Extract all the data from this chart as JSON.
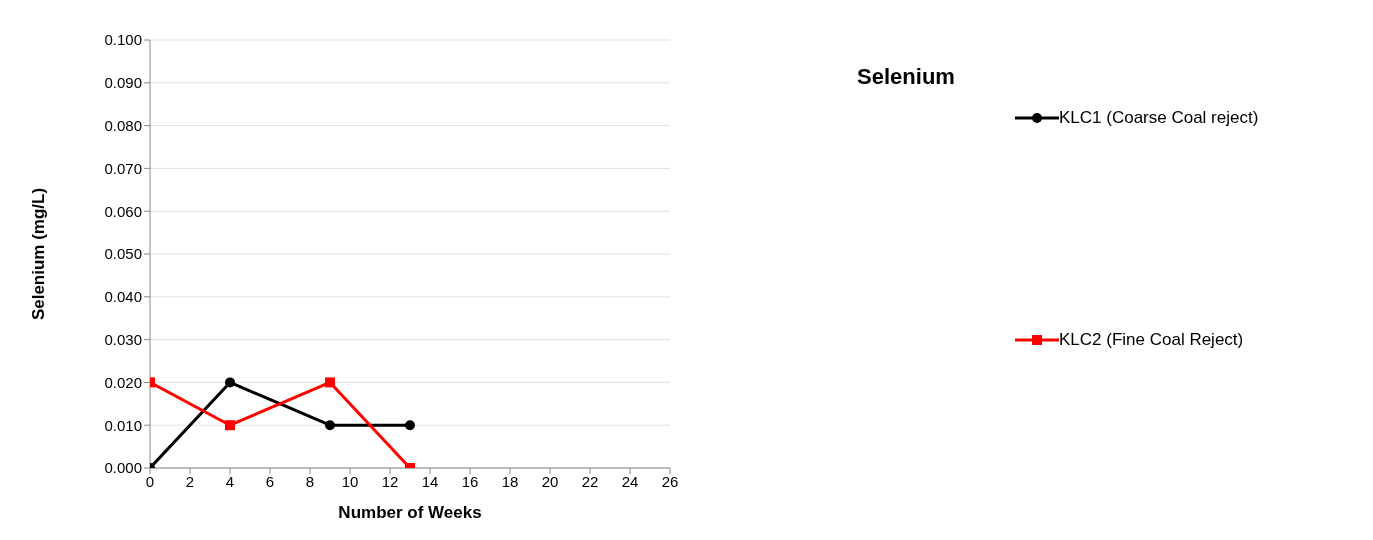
{
  "chart_data": {
    "type": "line",
    "title": "Selenium",
    "xlabel": "Number of Weeks",
    "ylabel": "Selenium  (mg/L)",
    "x": [
      0,
      4,
      9,
      13
    ],
    "series": [
      {
        "name": "KLC1 (Coarse Coal reject)",
        "color": "#000000",
        "marker": "circle",
        "values": [
          0,
          0.02,
          0.01,
          0.01
        ]
      },
      {
        "name": "KLC2 (Fine Coal Reject)",
        "color": "#ff0000",
        "marker": "square",
        "values": [
          0.02,
          0.01,
          0.02,
          0
        ]
      }
    ],
    "xlim": [
      0,
      26
    ],
    "xticks": [
      0,
      2,
      4,
      6,
      8,
      10,
      12,
      14,
      16,
      18,
      20,
      22,
      24,
      26
    ],
    "ylim": [
      0,
      0.1
    ],
    "yticks": [
      {
        "value": 0,
        "label": "0.000"
      },
      {
        "value": 0.01,
        "label": "0.010"
      },
      {
        "value": 0.02,
        "label": "0.020"
      },
      {
        "value": 0.03,
        "label": "0.030"
      },
      {
        "value": 0.04,
        "label": "0.040"
      },
      {
        "value": 0.05,
        "label": "0.050"
      },
      {
        "value": 0.06,
        "label": "0.060"
      },
      {
        "value": 0.07,
        "label": "0.070"
      },
      {
        "value": 0.08,
        "label": "0.080"
      },
      {
        "value": 0.09,
        "label": "0.090"
      },
      {
        "value": 0.1,
        "label": "0.100"
      }
    ],
    "grid": "y",
    "legend": "right",
    "line_style": "solid"
  }
}
